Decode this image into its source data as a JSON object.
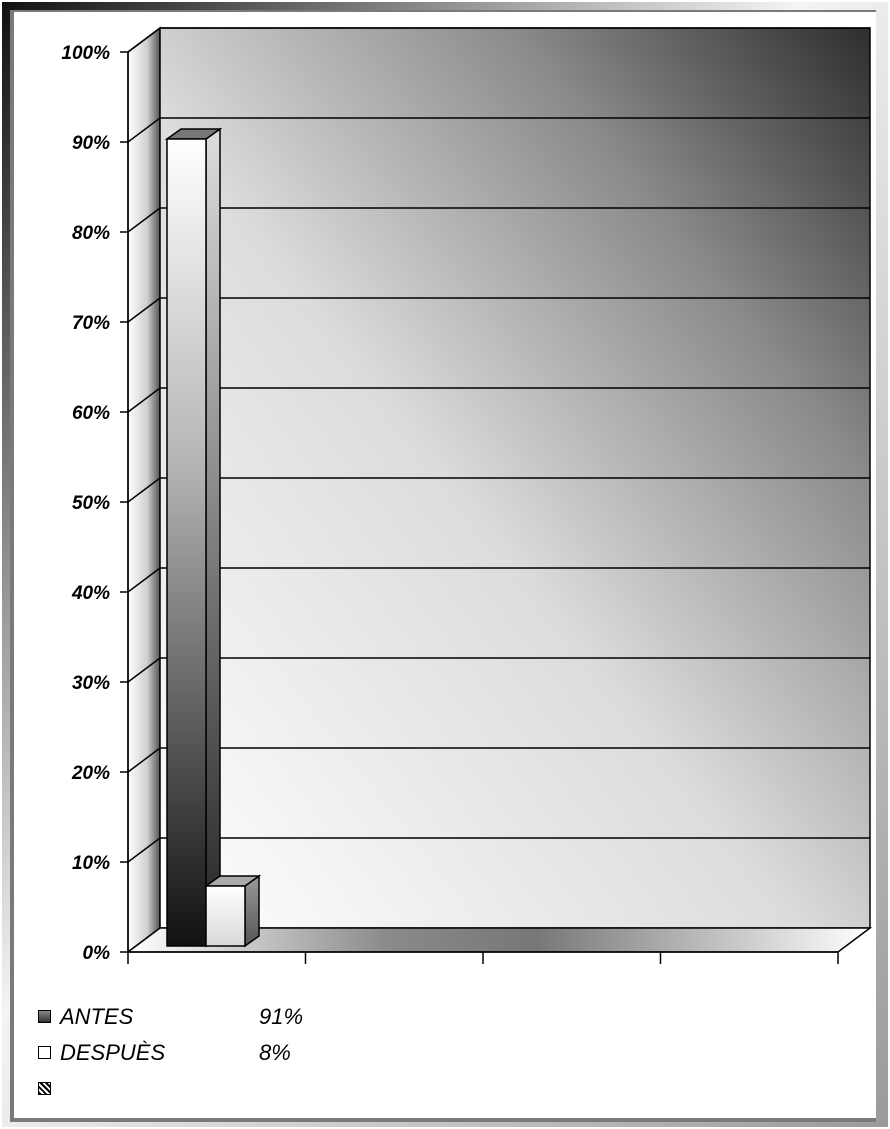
{
  "chart_data": {
    "type": "bar",
    "style": "3d-column",
    "categories": [
      ""
    ],
    "series": [
      {
        "name": "ANTES",
        "values": [
          91
        ],
        "color": "#2a2a2a"
      },
      {
        "name": "DESPUÈS",
        "values": [
          8
        ],
        "color": "#f2f2f2"
      }
    ],
    "title": "",
    "xlabel": "",
    "ylabel": "",
    "ylim": [
      0,
      100
    ],
    "y_ticks": [
      "0%",
      "10%",
      "20%",
      "30%",
      "40%",
      "50%",
      "60%",
      "70%",
      "80%",
      "90%",
      "100%"
    ],
    "grid": true,
    "legend_position": "bottom-left"
  },
  "legend": {
    "items": [
      {
        "name": "ANTES",
        "value": "91%"
      },
      {
        "name": "DESPUÈS",
        "value": "8%"
      },
      {
        "name": "",
        "value": ""
      }
    ]
  }
}
